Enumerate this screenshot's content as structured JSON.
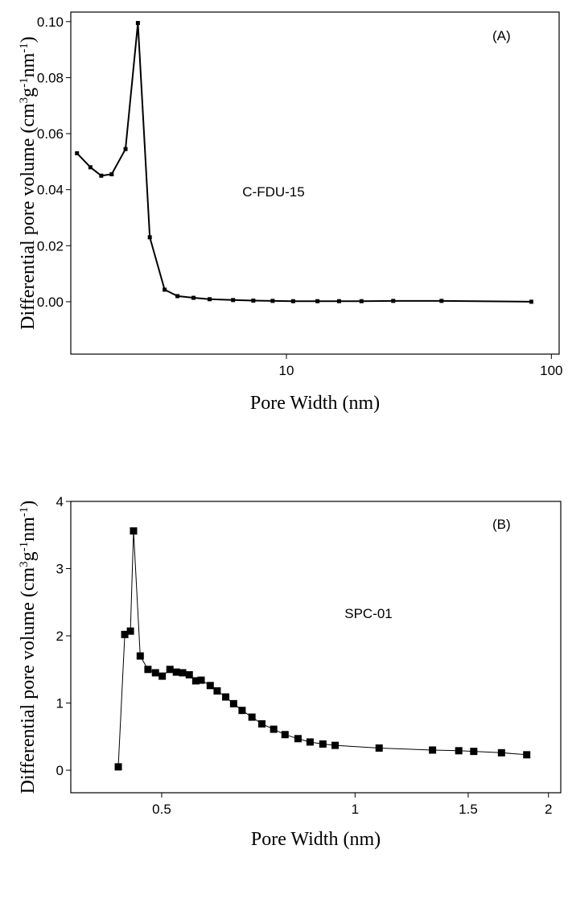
{
  "chart_data": [
    {
      "type": "line",
      "x_label": "Pore Width (nm)",
      "y_label": [
        "Differential pore volume (cm",
        "3",
        "g",
        "-1",
        "nm",
        "-1",
        ")"
      ],
      "annotations": [
        "(A)",
        "C-FDU-15"
      ],
      "log_x": true,
      "color": "#000000",
      "marker_size": 5,
      "line_width": 2,
      "xlim": [
        1.535,
        107
      ],
      "ylim": [
        -0.0187,
        0.1034
      ],
      "xticks": [
        10,
        100
      ],
      "yticks": [
        {
          "value": 0,
          "label": "0.00"
        },
        {
          "value": 0.02,
          "label": "0.02"
        },
        {
          "value": 0.04,
          "label": "0.04"
        },
        {
          "value": 0.06,
          "label": "0.06"
        },
        {
          "value": 0.08,
          "label": "0.08"
        },
        {
          "value": 0.1,
          "label": "0.10"
        }
      ],
      "x": [
        1.62,
        1.82,
        2.0,
        2.19,
        2.47,
        2.75,
        3.05,
        3.47,
        3.88,
        4.46,
        5.13,
        6.29,
        7.5,
        8.87,
        10.6,
        13.1,
        15.8,
        19.2,
        25.3,
        38.5,
        84
      ],
      "values": [
        0.053,
        0.048,
        0.045,
        0.0455,
        0.0545,
        0.0995,
        0.023,
        0.0043,
        0.002,
        0.0014,
        0.0009,
        0.0006,
        0.0004,
        0.0003,
        0.0002,
        0.0002,
        0.0002,
        0.0002,
        0.0003,
        0.0003,
        0.0
      ]
    },
    {
      "type": "line",
      "x_label": "Pore Width (nm)",
      "y_label": [
        "Differential pore volume (cm",
        "3",
        "g",
        "-1",
        "nm",
        "-1",
        ")"
      ],
      "annotations": [
        "(B)",
        "SPC-01"
      ],
      "log_x": true,
      "color": "#000000",
      "marker_size": 9,
      "line_width": 1,
      "xlim": [
        0.361,
        2.09
      ],
      "ylim": [
        -0.335,
        4
      ],
      "xticks": [
        0.5,
        1,
        1.5,
        2
      ],
      "yticks": [
        0,
        1,
        2,
        3,
        4
      ],
      "x": [
        0.428,
        0.438,
        0.447,
        0.452,
        0.463,
        0.476,
        0.489,
        0.501,
        0.515,
        0.527,
        0.539,
        0.552,
        0.565,
        0.576,
        0.595,
        0.61,
        0.629,
        0.647,
        0.667,
        0.691,
        0.716,
        0.747,
        0.778,
        0.815,
        0.851,
        0.891,
        0.931,
        1.09,
        1.32,
        1.45,
        1.53,
        1.69,
        1.85
      ],
      "values": [
        0.05,
        2.02,
        2.07,
        3.56,
        1.7,
        1.5,
        1.45,
        1.4,
        1.5,
        1.46,
        1.45,
        1.42,
        1.33,
        1.34,
        1.26,
        1.18,
        1.09,
        0.99,
        0.89,
        0.79,
        0.69,
        0.61,
        0.53,
        0.47,
        0.42,
        0.39,
        0.37,
        0.33,
        0.3,
        0.29,
        0.28,
        0.26,
        0.23
      ]
    }
  ]
}
